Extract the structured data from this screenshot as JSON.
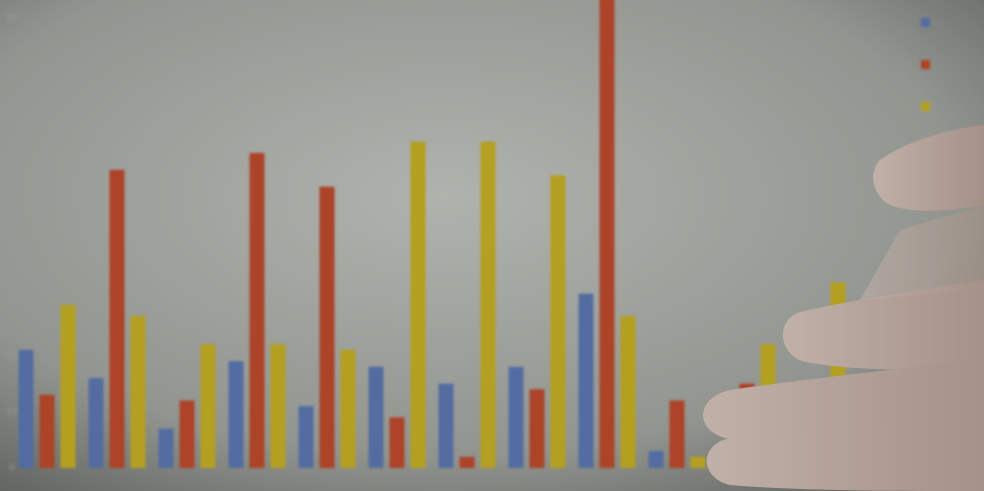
{
  "chart_data": {
    "type": "bar",
    "categories": [
      null,
      null,
      null,
      null,
      null,
      null,
      null,
      null,
      null,
      null,
      null,
      null
    ],
    "series": [
      {
        "color": "#5c78b4",
        "values": [
          21,
          16,
          7,
          19,
          11,
          18,
          15,
          18,
          31,
          3,
          null,
          null
        ]
      },
      {
        "color": "#c24a2c",
        "values": [
          13,
          53,
          12,
          56,
          50,
          9,
          2,
          14,
          84,
          12,
          15,
          null
        ]
      },
      {
        "color": "#c9b224",
        "values": [
          29,
          27,
          22,
          22,
          21,
          58,
          58,
          52,
          27,
          2,
          22,
          33
        ]
      }
    ],
    "ylim": [
      0,
      80
    ],
    "yticks": [
      0,
      10,
      20,
      30,
      40,
      50,
      60,
      70,
      80
    ]
  }
}
